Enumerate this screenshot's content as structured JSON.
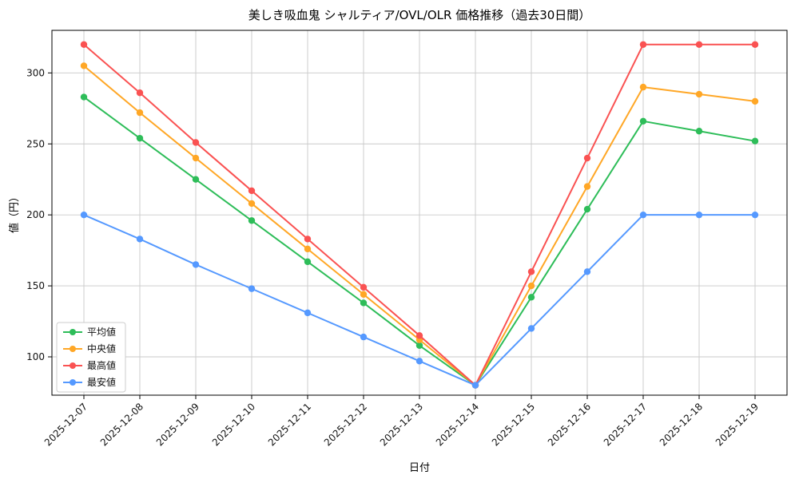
{
  "title": "美しき吸血鬼 シャルティア/OVL/OLR 価格推移（過去30日間）",
  "xlabel": "日付",
  "ylabel": "値（円）",
  "chart_data": {
    "type": "line",
    "x": [
      "2025-12-07",
      "2025-12-08",
      "2025-12-09",
      "2025-12-10",
      "2025-12-11",
      "2025-12-12",
      "2025-12-13",
      "2025-12-14",
      "2025-12-15",
      "2025-12-16",
      "2025-12-17",
      "2025-12-18",
      "2025-12-19"
    ],
    "series": [
      {
        "name": "平均値",
        "color": "#2ebd59",
        "values": [
          283,
          254,
          225,
          196,
          167,
          138,
          108,
          80,
          142,
          204,
          266,
          259,
          252
        ]
      },
      {
        "name": "中央値",
        "color": "#ffa726",
        "values": [
          305,
          272,
          240,
          208,
          176,
          144,
          112,
          80,
          150,
          220,
          290,
          285,
          280
        ]
      },
      {
        "name": "最高値",
        "color": "#fa5252",
        "values": [
          320,
          286,
          251,
          217,
          183,
          149,
          115,
          80,
          160,
          240,
          320,
          320,
          320
        ]
      },
      {
        "name": "最安値",
        "color": "#5599ff",
        "values": [
          200,
          183,
          165,
          148,
          131,
          114,
          97,
          80,
          120,
          160,
          200,
          200,
          200
        ]
      }
    ],
    "yticks": [
      100,
      150,
      200,
      250,
      300
    ],
    "ylim": [
      73,
      330
    ],
    "grid": true,
    "legend_position": "lower left",
    "legend_entries": [
      "平均値",
      "中央値",
      "最高値",
      "最安値"
    ]
  }
}
